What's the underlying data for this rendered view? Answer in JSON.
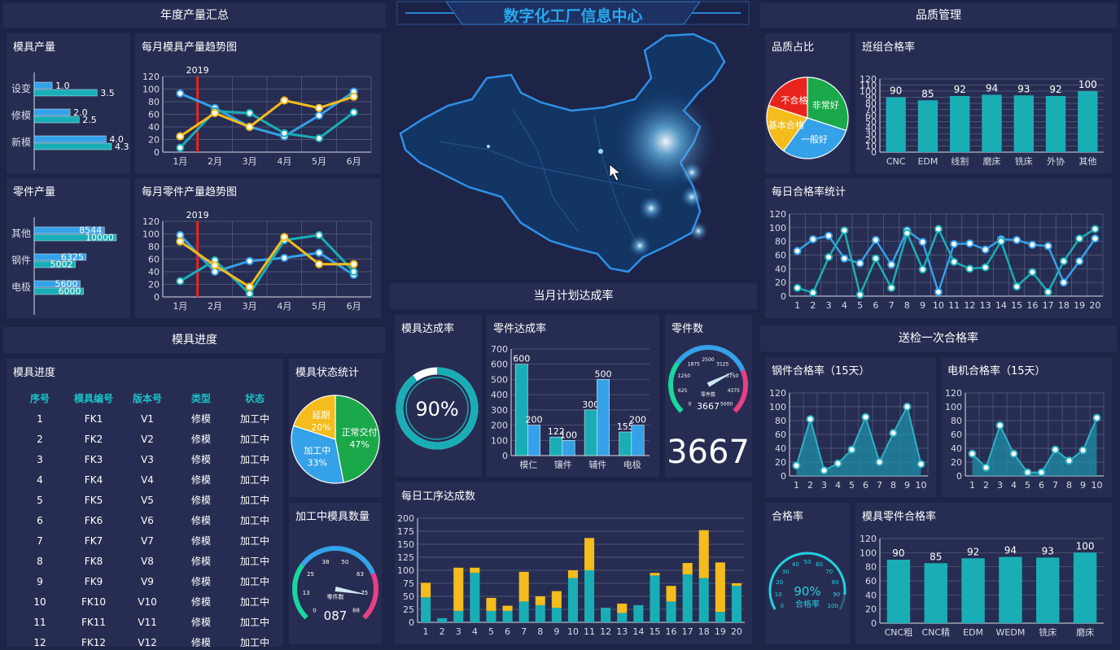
{
  "page": {
    "title": "数字化工厂信息中心"
  },
  "colors": {
    "bg": "#1e2447",
    "panel": "#272d52",
    "teal": "#19aeb6",
    "blue": "#35a1e8",
    "yellow": "#f4bc1c",
    "green": "#1aa84a",
    "red": "#e8241c",
    "grid": "#5a6080",
    "axis": "#d8dce8",
    "marker": "#e8241c"
  },
  "sections": {
    "annual": "年度产量汇总",
    "quality": "品质管理",
    "mold_progress": "模具进度",
    "plan": "当月计划达成率",
    "inspection": "送检一次合格率"
  },
  "mold_output": {
    "title": "模具产量",
    "categories": [
      "设变",
      "修模",
      "新模"
    ],
    "series": [
      {
        "values": [
          1.0,
          2.0,
          4.0
        ]
      },
      {
        "values": [
          3.5,
          2.5,
          4.3
        ]
      }
    ],
    "labels_a": [
      "1.0",
      "2.0",
      "4.0"
    ],
    "labels_b": [
      "3.5",
      "2.5",
      "4.3"
    ]
  },
  "part_output": {
    "title": "零件产量",
    "categories": [
      "其他",
      "钢件",
      "电极"
    ],
    "series": [
      {
        "values": [
          8544,
          6325,
          5600
        ]
      },
      {
        "values": [
          10000,
          5002,
          6000
        ]
      }
    ],
    "labels_a": [
      "8544",
      "6325",
      "5600"
    ],
    "labels_b": [
      "10000",
      "5002",
      "6000"
    ]
  },
  "monthly_mold_trend": {
    "title": "每月模具产量趋势图",
    "marker_label": "2019",
    "categories": [
      "1月",
      "2月",
      "3月",
      "4月",
      "5月",
      "6月"
    ],
    "ylim": [
      0,
      120
    ],
    "yticks": [
      "0",
      "20",
      "40",
      "60",
      "80",
      "100",
      "120"
    ],
    "series": [
      {
        "color": "#35a1e8",
        "values": [
          93,
          70,
          40,
          25,
          58,
          96
        ]
      },
      {
        "color": "#19aeb6",
        "values": [
          7,
          65,
          62,
          30,
          22,
          63
        ]
      },
      {
        "color": "#f4bc1c",
        "values": [
          25,
          62,
          40,
          82,
          70,
          88
        ]
      }
    ]
  },
  "monthly_part_trend": {
    "title": "每月零件产量趋势图",
    "marker_label": "2019",
    "categories": [
      "1月",
      "2月",
      "3月",
      "4月",
      "5月",
      "6月"
    ],
    "ylim": [
      0,
      120
    ],
    "yticks": [
      "0",
      "20",
      "40",
      "60",
      "80",
      "100",
      "120"
    ],
    "series": [
      {
        "color": "#35a1e8",
        "values": [
          98,
          40,
          57,
          62,
          70,
          35
        ]
      },
      {
        "color": "#19aeb6",
        "values": [
          25,
          58,
          5,
          90,
          98,
          40
        ]
      },
      {
        "color": "#f4bc1c",
        "values": [
          88,
          50,
          16,
          95,
          52,
          52
        ]
      }
    ]
  },
  "quality_ratio": {
    "title": "品质占比",
    "slices": [
      {
        "label": "非常好",
        "value": 30,
        "color": "#1aa84a"
      },
      {
        "label": "一般好",
        "value": 30,
        "color": "#35a1e8"
      },
      {
        "label": "基本合格",
        "value": 20,
        "color": "#f4bc1c"
      },
      {
        "label": "不合格",
        "value": 20,
        "color": "#e8241c"
      }
    ]
  },
  "team_pass_rate": {
    "title": "班组合格率",
    "categories": [
      "CNC",
      "EDM",
      "线割",
      "磨床",
      "铣床",
      "外协",
      "其他"
    ],
    "values": [
      90,
      85,
      92,
      94,
      93,
      92,
      100
    ],
    "value_labels": [
      "90",
      "85",
      "92",
      "94",
      "93",
      "92",
      "100"
    ],
    "ylim": [
      0,
      120
    ],
    "yticks": [
      "0",
      "10",
      "20",
      "30",
      "40",
      "50",
      "60",
      "70",
      "80",
      "90",
      "100",
      "110",
      "120"
    ]
  },
  "daily_pass_rate": {
    "title": "每日合格率统计",
    "categories": [
      "1",
      "2",
      "3",
      "4",
      "5",
      "6",
      "7",
      "8",
      "9",
      "10",
      "11",
      "12",
      "13",
      "14",
      "15",
      "16",
      "17",
      "18",
      "19",
      "20"
    ],
    "ylim": [
      0,
      120
    ],
    "yticks": [
      "0",
      "20",
      "40",
      "60",
      "80",
      "100",
      "120"
    ],
    "series": [
      {
        "color": "#35a1e8",
        "values": [
          66,
          83,
          88,
          55,
          48,
          82,
          46,
          96,
          79,
          6,
          76,
          77,
          68,
          83,
          82,
          75,
          73,
          20,
          51,
          84
        ]
      },
      {
        "color": "#19aeb6",
        "values": [
          12,
          5,
          57,
          96,
          2,
          55,
          12,
          92,
          39,
          98,
          50,
          40,
          42,
          80,
          14,
          35,
          6,
          51,
          84,
          98
        ]
      }
    ]
  },
  "mold_table": {
    "title": "模具进度",
    "columns": [
      "序号",
      "模具编号",
      "版本号",
      "类型",
      "状态"
    ],
    "rows": [
      [
        "1",
        "FK1",
        "V1",
        "修模",
        "加工中"
      ],
      [
        "2",
        "FK2",
        "V2",
        "修模",
        "加工中"
      ],
      [
        "3",
        "FK3",
        "V3",
        "修模",
        "加工中"
      ],
      [
        "4",
        "FK4",
        "V4",
        "修模",
        "加工中"
      ],
      [
        "5",
        "FK5",
        "V5",
        "修模",
        "加工中"
      ],
      [
        "6",
        "FK6",
        "V6",
        "修模",
        "加工中"
      ],
      [
        "7",
        "FK7",
        "V7",
        "修模",
        "加工中"
      ],
      [
        "8",
        "FK8",
        "V8",
        "修模",
        "加工中"
      ],
      [
        "9",
        "FK9",
        "V9",
        "修模",
        "加工中"
      ],
      [
        "10",
        "FK10",
        "V10",
        "修模",
        "加工中"
      ],
      [
        "11",
        "FK11",
        "V11",
        "修模",
        "加工中"
      ],
      [
        "12",
        "FK12",
        "V12",
        "修模",
        "加工中"
      ]
    ]
  },
  "mold_status": {
    "title": "模具状态统计",
    "slices": [
      {
        "label": "正常交付",
        "pct": "47%",
        "value": 47,
        "color": "#1aa84a"
      },
      {
        "label": "加工中",
        "pct": "33%",
        "value": 33,
        "color": "#35a1e8"
      },
      {
        "label": "延期",
        "pct": "20%",
        "value": 20,
        "color": "#f4bc1c"
      }
    ]
  },
  "molds_in_process": {
    "title": "加工中模具数量",
    "ticks": [
      "0",
      "13",
      "25",
      "38",
      "50",
      "63",
      "75",
      "88"
    ],
    "unit_label": "零件数",
    "value": "087",
    "value_num": 87,
    "max": 100
  },
  "mold_rate": {
    "title": "模具达成率",
    "value_label": "90%",
    "value": 90
  },
  "part_rate": {
    "title": "零件达成率",
    "categories": [
      "模仁",
      "镶件",
      "辅件",
      "电极"
    ],
    "series": [
      {
        "color": "#19aeb6",
        "values": [
          600,
          122,
          300,
          155
        ],
        "labels": [
          "600",
          "122",
          "300",
          "155"
        ]
      },
      {
        "color": "#35a1e8",
        "values": [
          200,
          100,
          500,
          200
        ],
        "labels": [
          "200",
          "100",
          "500",
          "200"
        ]
      }
    ],
    "ylim": [
      0,
      700
    ],
    "yticks": [
      "0",
      "100",
      "200",
      "300",
      "400",
      "500",
      "600",
      "700"
    ]
  },
  "part_count": {
    "title": "零件数",
    "ticks": [
      "0",
      "625",
      "1250",
      "1875",
      "2500",
      "3125",
      "3750",
      "4375",
      "5000"
    ],
    "unit_label": "零件数",
    "value_small": "3667",
    "value_big": "3667",
    "value_num": 3667,
    "max": 5000
  },
  "daily_process": {
    "title": "每日工序达成数",
    "categories": [
      "1",
      "2",
      "3",
      "4",
      "5",
      "6",
      "7",
      "8",
      "9",
      "10",
      "11",
      "12",
      "13",
      "14",
      "15",
      "16",
      "17",
      "18",
      "19",
      "20"
    ],
    "ylim": [
      0,
      200
    ],
    "yticks": [
      "0",
      "25",
      "50",
      "75",
      "100",
      "125",
      "150",
      "175",
      "200"
    ],
    "series": [
      {
        "color": "#19aeb6",
        "values": [
          48,
          8,
          22,
          95,
          22,
          22,
          40,
          33,
          28,
          85,
          100,
          28,
          18,
          33,
          90,
          40,
          92,
          85,
          20,
          70
        ]
      },
      {
        "color": "#f4bc1c",
        "values": [
          28,
          0,
          83,
          10,
          25,
          10,
          57,
          17,
          32,
          15,
          62,
          0,
          18,
          0,
          5,
          30,
          22,
          92,
          95,
          5
        ]
      }
    ]
  },
  "steel_rate": {
    "title": "钢件合格率（15天）",
    "categories": [
      "1",
      "2",
      "3",
      "4",
      "5",
      "6",
      "7",
      "8",
      "9",
      "10"
    ],
    "ylim": [
      0,
      120
    ],
    "yticks": [
      "0",
      "20",
      "40",
      "60",
      "80",
      "100",
      "120"
    ],
    "values": [
      15,
      82,
      8,
      18,
      38,
      85,
      20,
      62,
      100,
      17
    ]
  },
  "electrode_rate": {
    "title": "电机合格率（15天）",
    "categories": [
      "1",
      "2",
      "3",
      "4",
      "5",
      "6",
      "7",
      "8",
      "9",
      "10"
    ],
    "ylim": [
      0,
      120
    ],
    "yticks": [
      "0",
      "20",
      "40",
      "60",
      "80",
      "100",
      "120"
    ],
    "values": [
      32,
      12,
      73,
      32,
      5,
      5,
      38,
      22,
      37,
      84
    ]
  },
  "pass_gauge": {
    "title": "合格率",
    "ticks": [
      "0",
      "10",
      "20",
      "30",
      "40",
      "50",
      "60",
      "70",
      "80",
      "90",
      "100"
    ],
    "value_label": "90%",
    "unit_label": "合格率",
    "value": 90
  },
  "mold_part_rate": {
    "title": "模具零件合格率",
    "categories": [
      "CNC粗",
      "CNC精",
      "EDM",
      "WEDM",
      "铣床",
      "磨床"
    ],
    "values": [
      90,
      85,
      92,
      94,
      93,
      100
    ],
    "value_labels": [
      "90",
      "85",
      "92",
      "94",
      "93",
      "100"
    ],
    "ylim": [
      0,
      120
    ],
    "yticks": [
      "0",
      "20",
      "40",
      "60",
      "80",
      "100",
      "120"
    ]
  }
}
